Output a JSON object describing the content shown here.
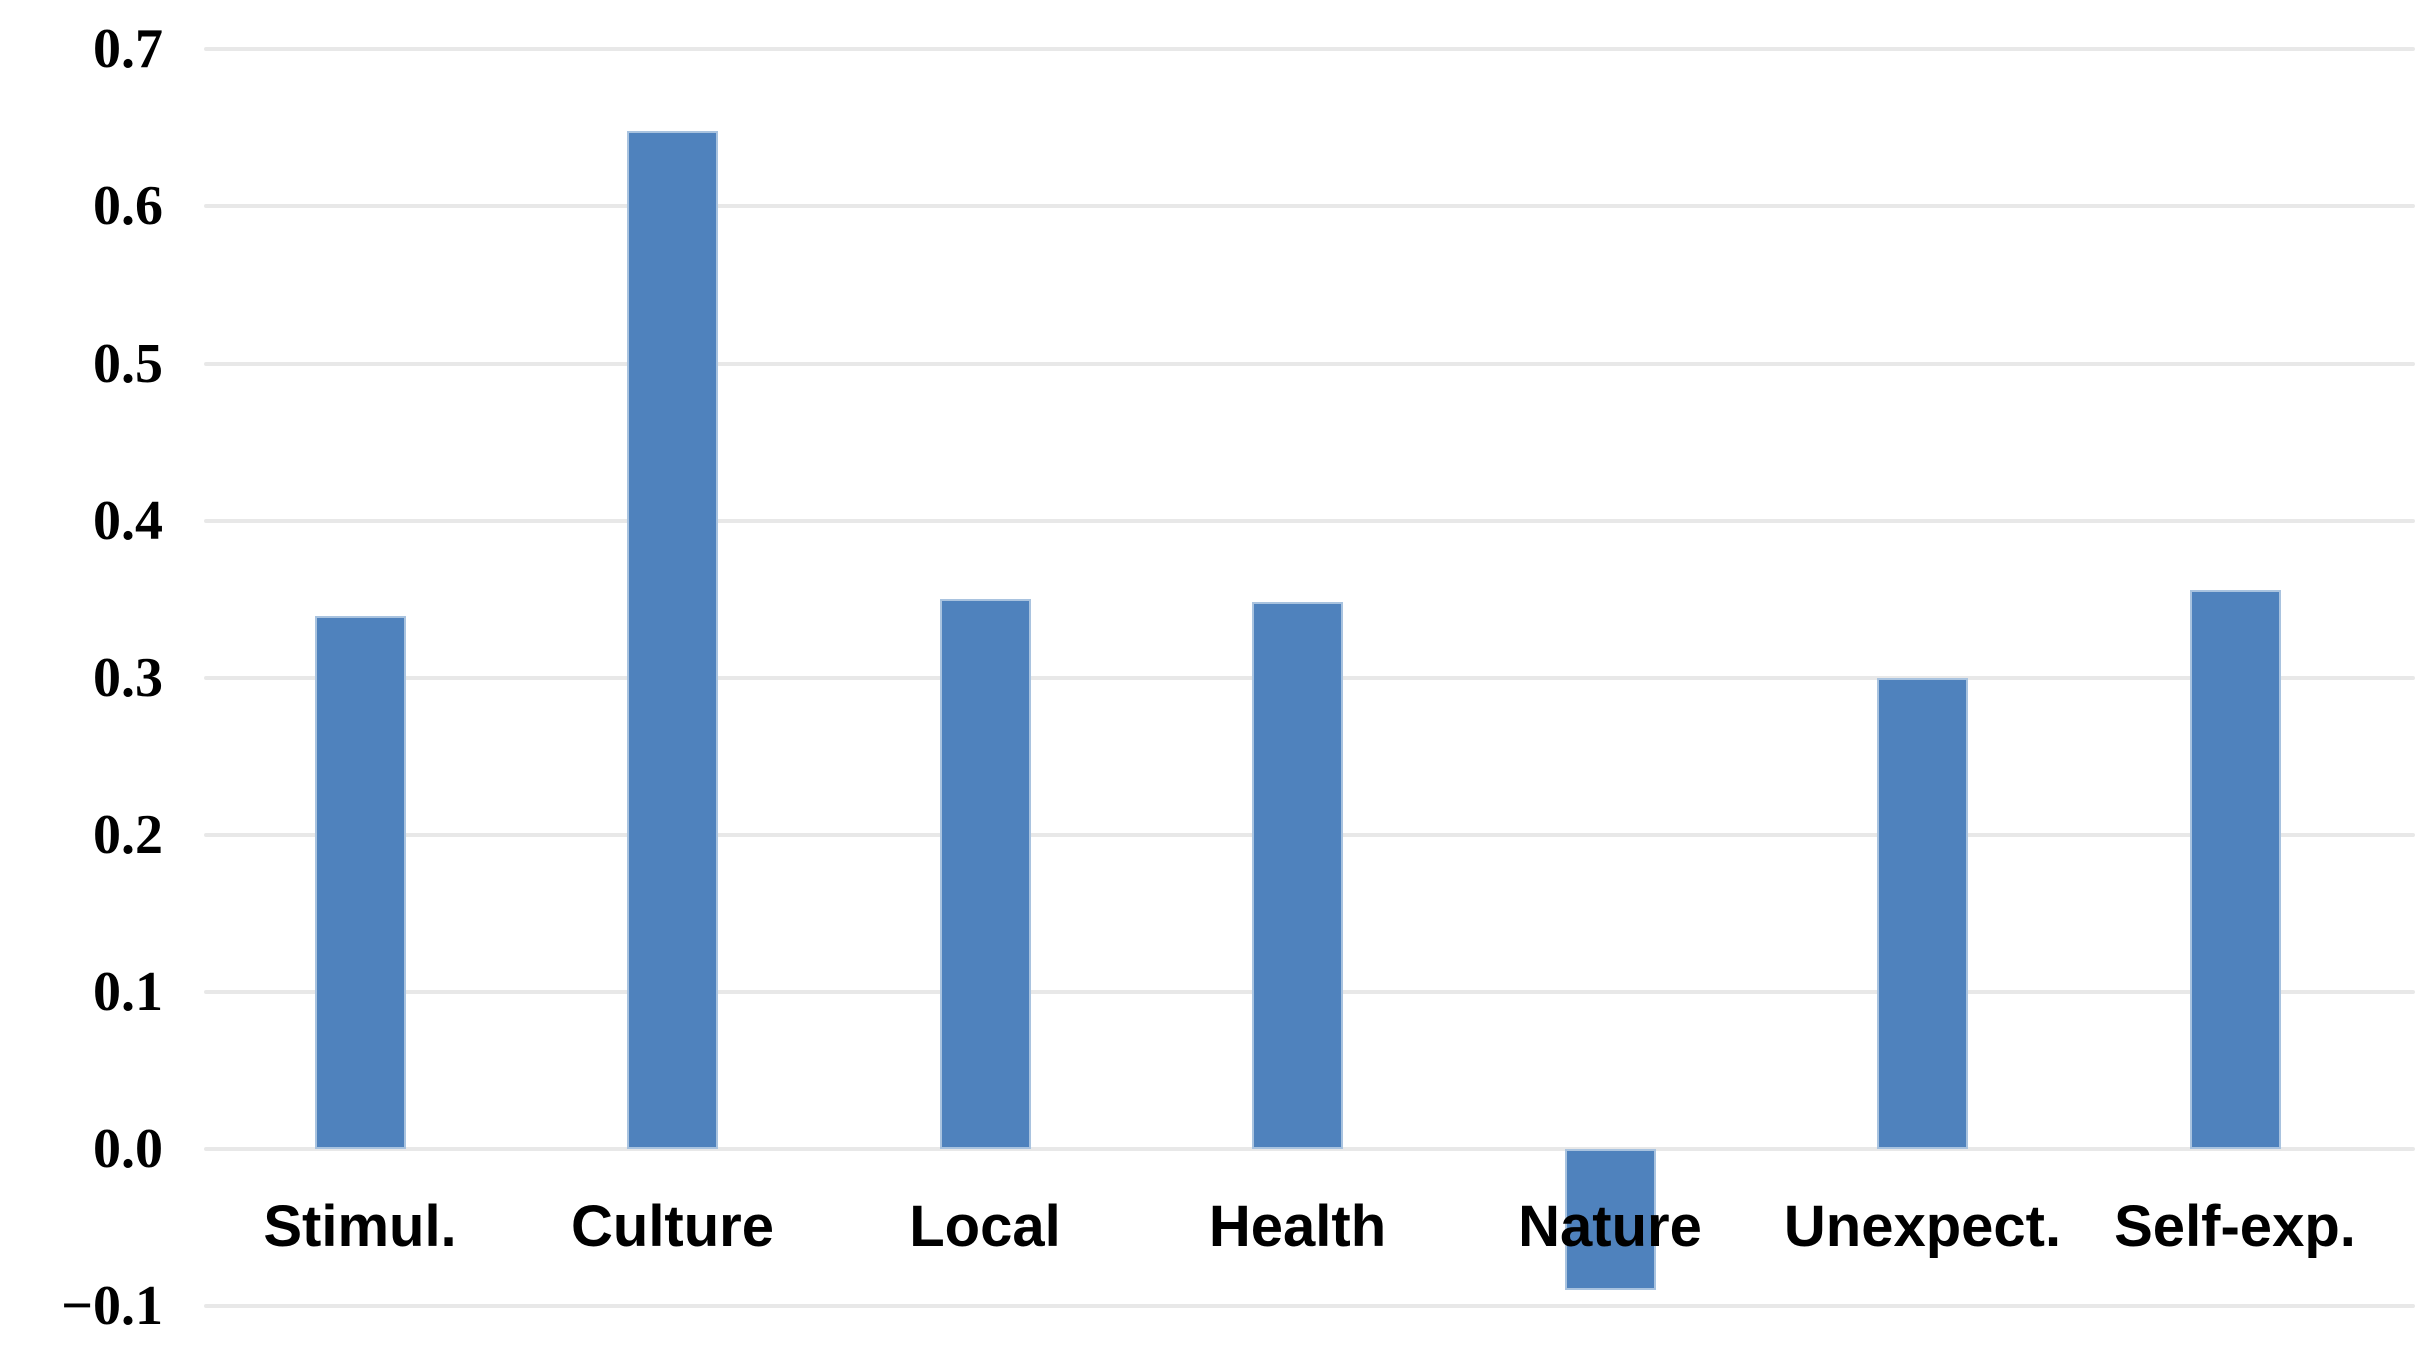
{
  "chart_data": {
    "type": "bar",
    "title": "",
    "xlabel": "",
    "ylabel": "",
    "categories": [
      "Stimul.",
      "Culture",
      "Local",
      "Health",
      "Nature",
      "Unexpect.",
      "Self-exp."
    ],
    "values": [
      0.339,
      0.648,
      0.35,
      0.348,
      -0.09,
      0.3,
      0.356
    ],
    "ylim": [
      -0.1,
      0.7
    ],
    "ytick_values": [
      0.7,
      0.6,
      0.5,
      0.4,
      0.3,
      0.2,
      0.1,
      0.0,
      -0.1
    ],
    "ytick_labels": [
      "0.7",
      "0.6",
      "0.5",
      "0.4",
      "0.3",
      "0.2",
      "0.1",
      "0.0",
      "−0.1"
    ],
    "grid": true,
    "legend": "none",
    "colors": {
      "bar_fill": "#4F82BD",
      "bar_edge": "#A9C3DF",
      "gridline": "#E8E8E8",
      "text": "#000000",
      "background": "#FFFFFF"
    }
  }
}
